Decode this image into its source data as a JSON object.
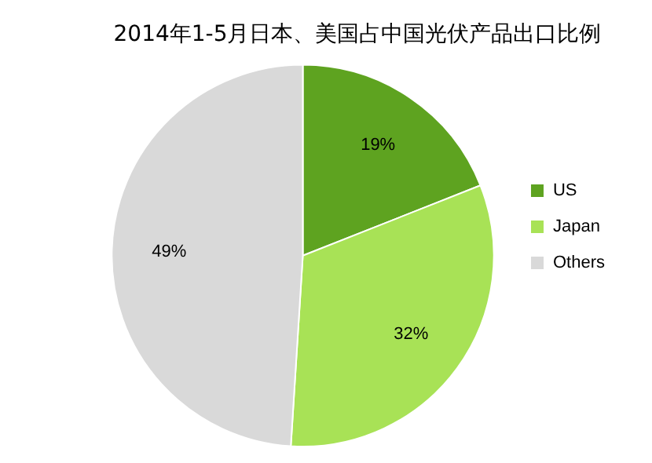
{
  "chart_data": {
    "type": "pie",
    "title": "2014年1-5月日本、美国占中国光伏产品出口比例",
    "categories": [
      "US",
      "Japan",
      "Others"
    ],
    "values": [
      19,
      32,
      49
    ],
    "colors": [
      "#5ea320",
      "#a8e256",
      "#d9d9d9"
    ],
    "value_labels": [
      "19%",
      "32%",
      "49%"
    ],
    "legend": "right"
  }
}
